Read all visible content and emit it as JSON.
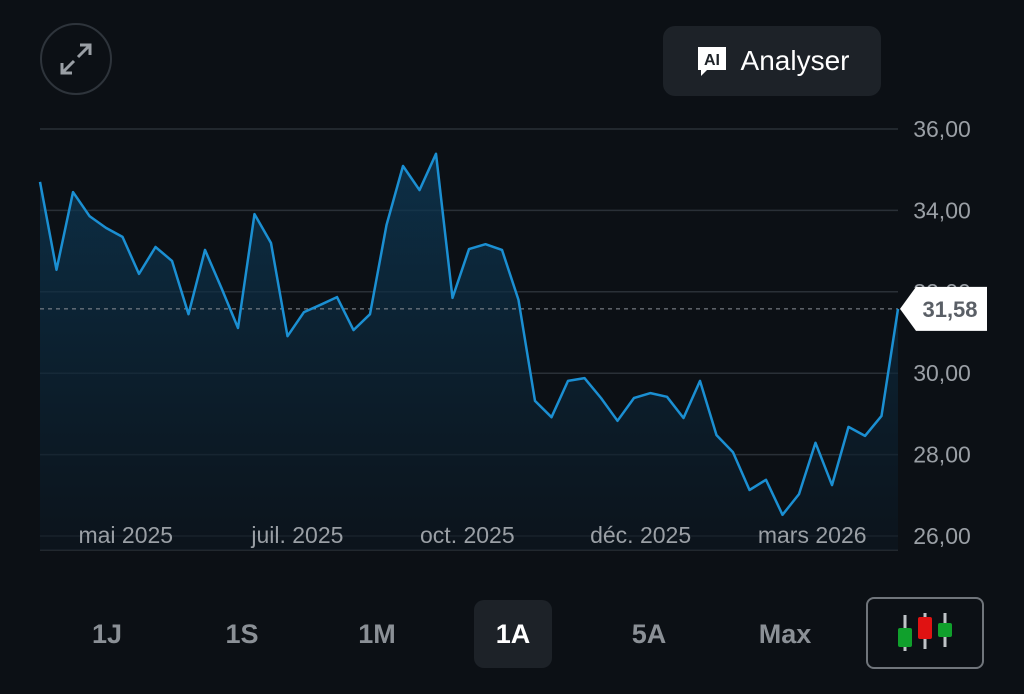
{
  "toolbar": {
    "expand_icon": "expand-arrows-icon",
    "analyse_label": "Analyser",
    "ai_icon_text": "AI"
  },
  "chart_data": {
    "type": "area",
    "title": "",
    "xlabel": "",
    "ylabel": "",
    "ylim": [
      26,
      36
    ],
    "y_ticks": [
      "36,00",
      "34,00",
      "32,00",
      "30,00",
      "28,00",
      "26,00"
    ],
    "y_tick_values": [
      36,
      34,
      32,
      30,
      28,
      26
    ],
    "x_ticks": [
      {
        "label": "mai 2025",
        "index": 5.2
      },
      {
        "label": "juil. 2025",
        "index": 15.6
      },
      {
        "label": "oct. 2025",
        "index": 25.9
      },
      {
        "label": "déc. 2025",
        "index": 36.4
      },
      {
        "label": "mars 2026",
        "index": 46.8
      }
    ],
    "values": [
      34.7,
      32.54,
      34.45,
      33.86,
      33.57,
      33.35,
      32.44,
      33.1,
      32.76,
      31.45,
      33.03,
      32.09,
      31.11,
      33.91,
      33.2,
      30.91,
      31.5,
      31.68,
      31.87,
      31.06,
      31.45,
      33.64,
      35.09,
      34.5,
      35.39,
      31.85,
      33.05,
      33.17,
      33.03,
      31.8,
      29.32,
      28.92,
      29.81,
      29.88,
      29.39,
      28.83,
      29.39,
      29.51,
      29.42,
      28.9,
      29.81,
      28.48,
      28.06,
      27.13,
      27.38,
      26.52,
      27.03,
      28.29,
      27.25,
      28.68,
      28.46,
      28.95,
      31.58
    ],
    "current_value": 31.58,
    "current_label": "31,58",
    "line_color": "#1b8fd2"
  },
  "tabs": [
    {
      "label": "1J",
      "active": false
    },
    {
      "label": "1S",
      "active": false
    },
    {
      "label": "1M",
      "active": false
    },
    {
      "label": "1A",
      "active": true
    },
    {
      "label": "5A",
      "active": false
    },
    {
      "label": "Max",
      "active": false
    }
  ],
  "chart_type_icon": "candlestick-icon"
}
